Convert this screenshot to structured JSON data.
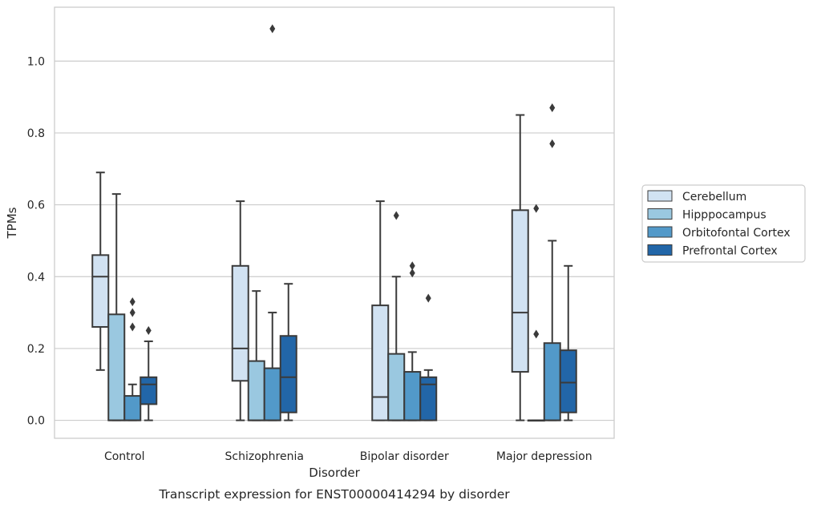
{
  "chart_data": {
    "type": "box",
    "xlabel": "Disorder",
    "ylabel": "TPMs",
    "caption": "Transcript expression for ENST00000414294 by disorder",
    "ylim": [
      -0.05,
      1.15
    ],
    "yticks": [
      "0.0",
      "0.2",
      "0.4",
      "0.6",
      "0.8",
      "1.0"
    ],
    "grid": true,
    "legend_position": "right",
    "categories": [
      "Control",
      "Schizophrenia",
      "Bipolar disorder",
      "Major depression"
    ],
    "series": [
      {
        "name": "Cerebellum",
        "color": "#d1e2f2",
        "boxes": [
          {
            "whislo": 0.14,
            "q1": 0.26,
            "med": 0.4,
            "q3": 0.46,
            "whishi": 0.69,
            "fliers": []
          },
          {
            "whislo": 0.0,
            "q1": 0.11,
            "med": 0.2,
            "q3": 0.43,
            "whishi": 0.61,
            "fliers": []
          },
          {
            "whislo": 0.0,
            "q1": 0.0,
            "med": 0.065,
            "q3": 0.32,
            "whishi": 0.61,
            "fliers": []
          },
          {
            "whislo": 0.0,
            "q1": 0.135,
            "med": 0.3,
            "q3": 0.585,
            "whishi": 0.85,
            "fliers": []
          }
        ]
      },
      {
        "name": "Hipppocampus",
        "color": "#9ac8e0",
        "boxes": [
          {
            "whislo": 0.0,
            "q1": 0.0,
            "med": 0.0,
            "q3": 0.295,
            "whishi": 0.63,
            "fliers": []
          },
          {
            "whislo": 0.0,
            "q1": 0.0,
            "med": 0.0,
            "q3": 0.165,
            "whishi": 0.36,
            "fliers": []
          },
          {
            "whislo": 0.0,
            "q1": 0.0,
            "med": 0.0,
            "q3": 0.185,
            "whishi": 0.4,
            "fliers": [
              0.57
            ]
          },
          {
            "whislo": 0.0,
            "q1": 0.0,
            "med": 0.0,
            "q3": 0.0,
            "whishi": 0.0,
            "fliers": [
              0.24,
              0.59
            ]
          }
        ]
      },
      {
        "name": "Orbitofontal Cortex",
        "color": "#5299c9",
        "boxes": [
          {
            "whislo": 0.0,
            "q1": 0.0,
            "med": 0.0,
            "q3": 0.068,
            "whishi": 0.1,
            "fliers": [
              0.26,
              0.3,
              0.33
            ]
          },
          {
            "whislo": 0.0,
            "q1": 0.0,
            "med": 0.0,
            "q3": 0.145,
            "whishi": 0.3,
            "fliers": [
              1.09
            ]
          },
          {
            "whislo": 0.0,
            "q1": 0.0,
            "med": 0.0,
            "q3": 0.135,
            "whishi": 0.19,
            "fliers": [
              0.41,
              0.43
            ]
          },
          {
            "whislo": 0.0,
            "q1": 0.0,
            "med": 0.0,
            "q3": 0.215,
            "whishi": 0.5,
            "fliers": [
              0.77,
              0.87
            ]
          }
        ]
      },
      {
        "name": "Prefrontal Cortex",
        "color": "#2266a8",
        "boxes": [
          {
            "whislo": 0.0,
            "q1": 0.045,
            "med": 0.1,
            "q3": 0.12,
            "whishi": 0.22,
            "fliers": [
              0.25
            ]
          },
          {
            "whislo": 0.0,
            "q1": 0.022,
            "med": 0.12,
            "q3": 0.235,
            "whishi": 0.38,
            "fliers": []
          },
          {
            "whislo": 0.0,
            "q1": 0.0,
            "med": 0.1,
            "q3": 0.12,
            "whishi": 0.14,
            "fliers": [
              0.34
            ]
          },
          {
            "whislo": 0.0,
            "q1": 0.022,
            "med": 0.105,
            "q3": 0.195,
            "whishi": 0.43,
            "fliers": []
          }
        ]
      }
    ]
  }
}
